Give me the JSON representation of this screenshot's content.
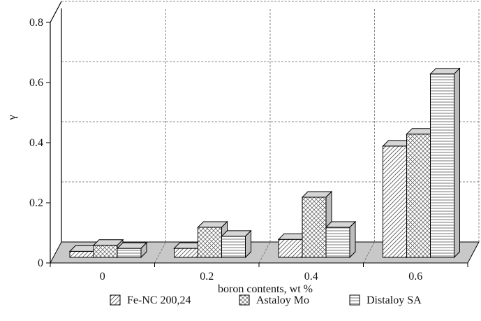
{
  "chart_data": {
    "type": "bar",
    "title": "",
    "xlabel": "boron contents, wt %",
    "ylabel": "γ",
    "categories": [
      "0",
      "0.2",
      "0.4",
      "0.6"
    ],
    "ylim": [
      0,
      0.8
    ],
    "yticks": [
      "0",
      "0.2",
      "0.4",
      "0.6",
      "0.8"
    ],
    "grid": true,
    "legend_position": "bottom",
    "series": [
      {
        "name": "Fe-NC 200,24",
        "pattern": "diagonal-hatch",
        "values": [
          0.02,
          0.03,
          0.06,
          0.37
        ]
      },
      {
        "name": "Astaloy Mo",
        "pattern": "cross-hatch",
        "values": [
          0.04,
          0.1,
          0.2,
          0.41
        ]
      },
      {
        "name": "Distaloy SA",
        "pattern": "horizontal-lines",
        "values": [
          0.03,
          0.07,
          0.1,
          0.61
        ]
      }
    ],
    "colors": {
      "floor": "#c8c8c8",
      "bar_top": "#d6d6d6",
      "bar_side": "#bdbdbd",
      "bar_front": "#ffffff",
      "line": "#000000"
    }
  }
}
